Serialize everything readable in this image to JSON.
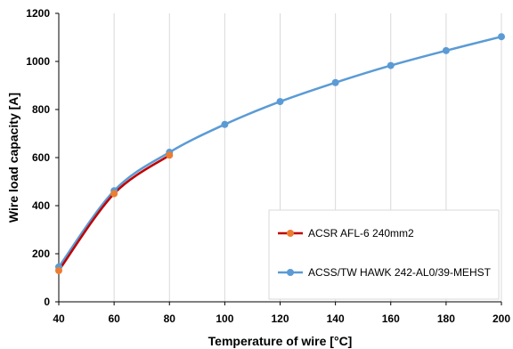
{
  "chart_data": {
    "type": "line",
    "xlabel": "Temperature of wire [°C]",
    "ylabel": "Wire load capacity [A]",
    "xlim": [
      40,
      200
    ],
    "ylim": [
      0,
      1200
    ],
    "x_ticks": [
      40,
      60,
      80,
      100,
      120,
      140,
      160,
      180,
      200
    ],
    "y_ticks": [
      0,
      200,
      400,
      600,
      800,
      1000,
      1200
    ],
    "grid": "vertical",
    "legend_position": "bottom-right",
    "series": [
      {
        "name": "ACSR AFL-6 240mm2",
        "line_color": "#c00000",
        "marker_color": "#ed7d31",
        "x": [
          40,
          60,
          80
        ],
        "y": [
          130,
          450,
          610
        ]
      },
      {
        "name": "ACSS/TW HAWK 242-AL0/39-MEHST",
        "line_color": "#5b9bd5",
        "marker_color": "#5b9bd5",
        "x": [
          40,
          60,
          80,
          100,
          120,
          140,
          160,
          180,
          200
        ],
        "y": [
          145,
          462,
          622,
          738,
          833,
          912,
          983,
          1045,
          1103
        ]
      }
    ]
  }
}
